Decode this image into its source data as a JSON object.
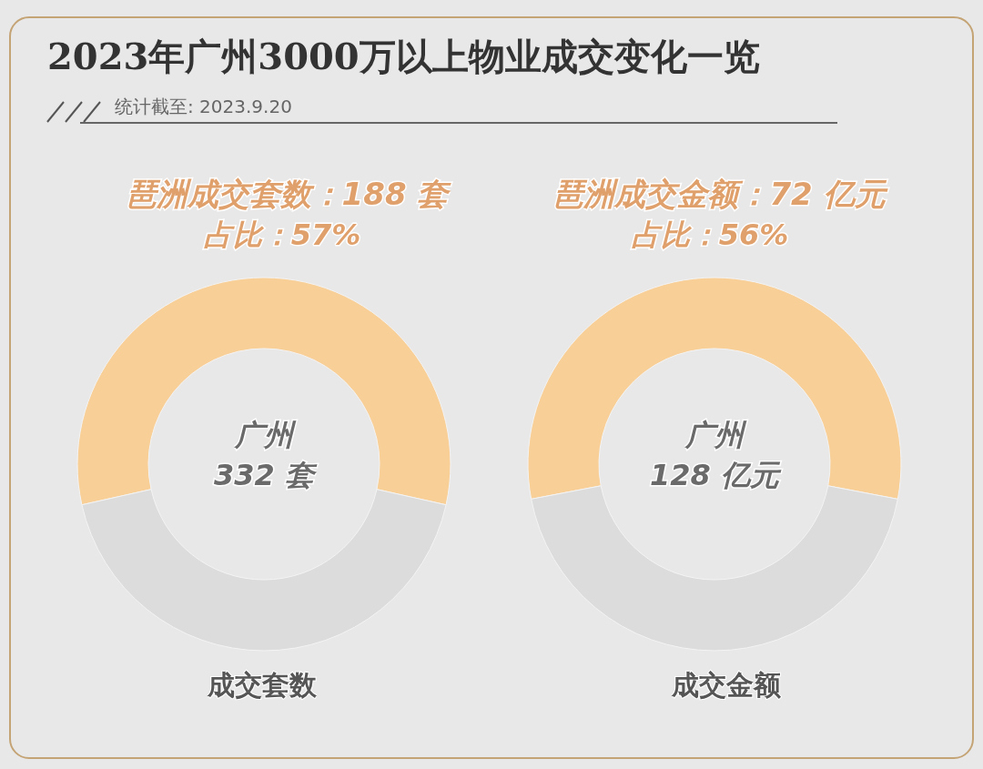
{
  "chart_data": [
    {
      "type": "other",
      "title": "2023年广州3000万以上物业成交变化一览",
      "subtitle": "统计截至: 2023.9.20"
    },
    {
      "type": "donut",
      "title": "成交套数",
      "categories": [
        null,
        null
      ],
      "values": [
        57,
        43
      ],
      "colors": [
        "#f9cf98",
        "#dcdcdc"
      ],
      "annotations": [
        "琶洲成交套数：188 套",
        "占比：57%",
        "广州",
        "332 套"
      ]
    },
    {
      "type": "donut",
      "title": "成交金额",
      "categories": [
        null,
        null
      ],
      "values": [
        56,
        44
      ],
      "colors": [
        "#f9cf98",
        "#dcdcdc"
      ],
      "annotations": [
        "琶洲成交金额：72 亿元",
        "占比：56%",
        "广州",
        "128 亿元"
      ]
    }
  ]
}
